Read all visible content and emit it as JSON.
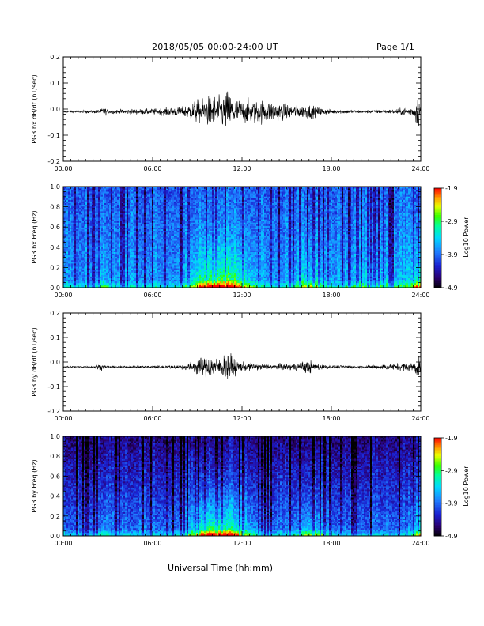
{
  "header": {
    "title": "2018/05/05  00:00-24:00 UT",
    "page": "Page 1/1"
  },
  "footer": {
    "xlabel": "Universal Time (hh:mm)"
  },
  "colors": {
    "trace": "#000000",
    "axes": "#000000",
    "background": "#ffffff"
  },
  "chart_data": [
    {
      "type": "line",
      "ylabel": "PG3 bx dB/dt (nT/sec)",
      "xlim": [
        "00:00",
        "24:00"
      ],
      "ylim": [
        -0.2,
        0.2
      ],
      "yticks": [
        "-0.2",
        "-0.1",
        "0.0",
        "0.1",
        "0.2"
      ],
      "xticks": [
        "00:00",
        "06:00",
        "12:00",
        "18:00",
        "24:00"
      ],
      "baseline": -0.01,
      "envelope": {
        "hours": [
          0,
          1,
          2,
          2.5,
          2.7,
          3,
          4,
          6,
          8,
          8.5,
          9,
          9.5,
          10,
          10.5,
          11,
          11.5,
          12,
          12.5,
          13,
          14,
          15,
          16,
          16.5,
          17,
          18,
          20,
          22,
          23.5,
          23.8,
          24
        ],
        "amplitude": [
          0.004,
          0.005,
          0.006,
          0.01,
          0.02,
          0.008,
          0.01,
          0.012,
          0.02,
          0.035,
          0.05,
          0.055,
          0.07,
          0.06,
          0.09,
          0.06,
          0.045,
          0.05,
          0.05,
          0.045,
          0.03,
          0.025,
          0.03,
          0.02,
          0.01,
          0.006,
          0.008,
          0.02,
          0.07,
          0.04
        ]
      }
    },
    {
      "type": "heatmap",
      "ylabel": "PG3 bx Freq (Hz)",
      "xlim": [
        "00:00",
        "24:00"
      ],
      "ylim": [
        0.0,
        1.0
      ],
      "yticks": [
        "0.0",
        "0.2",
        "0.4",
        "0.6",
        "0.8",
        "1.0"
      ],
      "xticks": [
        "00:00",
        "06:00",
        "12:00",
        "18:00",
        "24:00"
      ],
      "colorbar": {
        "label": "Log10 Power",
        "ticks": [
          "-1.9",
          "-2.9",
          "-3.9",
          "-4.9"
        ],
        "range": [
          -4.9,
          -1.9
        ]
      }
    },
    {
      "type": "line",
      "ylabel": "PG3 by dB/dt (nT/sec)",
      "xlim": [
        "00:00",
        "24:00"
      ],
      "ylim": [
        -0.2,
        0.2
      ],
      "yticks": [
        "-0.2",
        "-0.1",
        "0.0",
        "0.1",
        "0.2"
      ],
      "xticks": [
        "00:00",
        "06:00",
        "12:00",
        "18:00",
        "24:00"
      ],
      "baseline": -0.02,
      "envelope": {
        "hours": [
          0,
          2,
          2.6,
          2.8,
          3,
          6,
          8,
          8.5,
          9,
          9.5,
          10,
          10.5,
          11,
          11.5,
          12,
          13,
          14,
          15,
          16,
          16.5,
          17,
          18,
          20,
          23.5,
          23.8,
          24
        ],
        "amplitude": [
          0.003,
          0.004,
          0.015,
          0.008,
          0.004,
          0.006,
          0.01,
          0.02,
          0.035,
          0.04,
          0.05,
          0.035,
          0.07,
          0.035,
          0.02,
          0.015,
          0.012,
          0.015,
          0.02,
          0.03,
          0.015,
          0.007,
          0.005,
          0.02,
          0.05,
          0.03
        ]
      }
    },
    {
      "type": "heatmap",
      "ylabel": "PG3 by Freq (Hz)",
      "xlim": [
        "00:00",
        "24:00"
      ],
      "ylim": [
        0.0,
        1.0
      ],
      "yticks": [
        "0.0",
        "0.2",
        "0.4",
        "0.6",
        "0.8",
        "1.0"
      ],
      "xticks": [
        "00:00",
        "06:00",
        "12:00",
        "18:00",
        "24:00"
      ],
      "colorbar": {
        "label": "Log10 Power",
        "ticks": [
          "-1.9",
          "-2.9",
          "-3.9",
          "-4.9"
        ],
        "range": [
          -4.9,
          -1.9
        ]
      }
    }
  ]
}
